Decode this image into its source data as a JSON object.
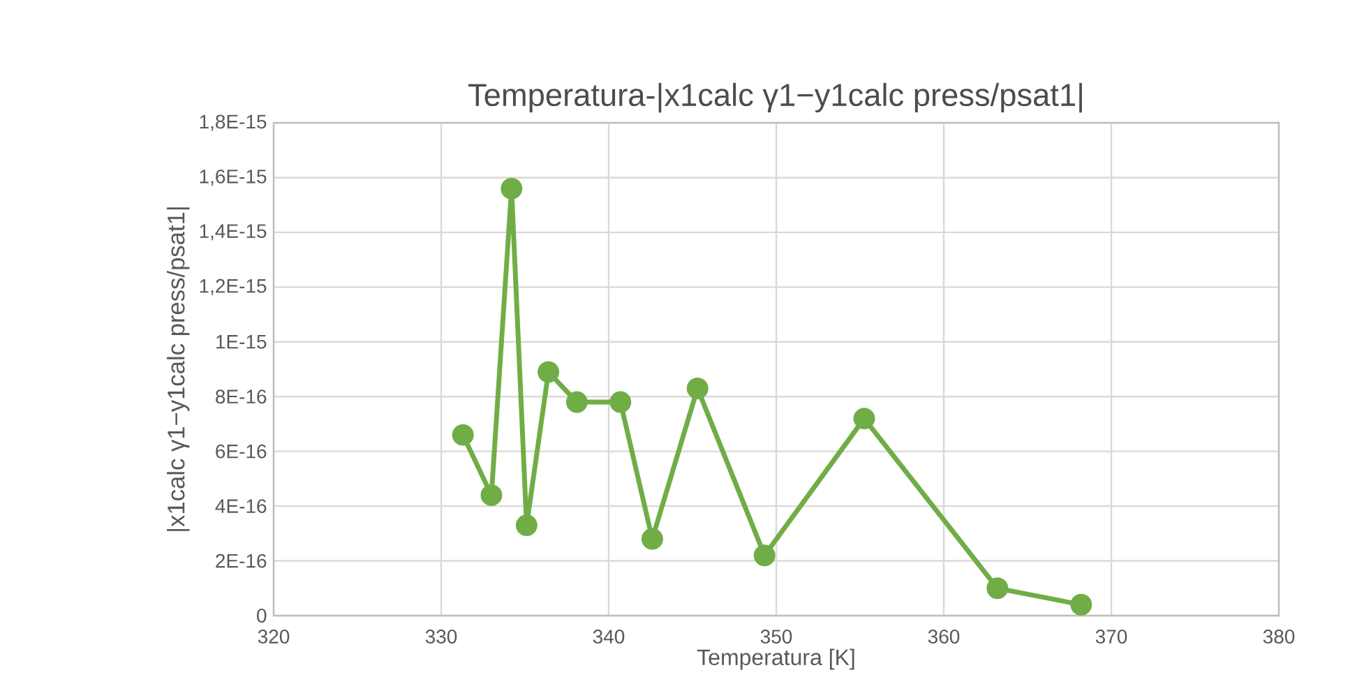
{
  "chart_data": {
    "type": "line",
    "title": "Temperatura-|x1calc γ1−y1calc  press/psat1|",
    "xlabel": "Temperatura [K]",
    "ylabel": "|x1calc γ1−y1calc  press/psat1|",
    "x": [
      331.3,
      333.0,
      334.2,
      335.1,
      336.4,
      338.1,
      340.7,
      342.6,
      345.3,
      349.3,
      355.25,
      363.2,
      368.2
    ],
    "series": [
      {
        "color": "#70ad47",
        "values": [
          6.6e-16,
          4.4e-16,
          1.56e-15,
          3.3e-16,
          8.9e-16,
          7.8e-16,
          7.8e-16,
          2.8e-16,
          8.3e-16,
          2.2e-16,
          7.2e-16,
          1e-16,
          4e-17
        ]
      }
    ],
    "xlim": [
      320,
      380
    ],
    "xticks": [
      320,
      330,
      340,
      350,
      360,
      370,
      380
    ],
    "ylim": [
      0,
      1.8e-15
    ],
    "yticks": [
      0,
      {
        "value": 2e-16,
        "label": "2E-16"
      },
      {
        "value": 4e-16,
        "label": "4E-16"
      },
      {
        "value": 6e-16,
        "label": "6E-16"
      },
      {
        "value": 8e-16,
        "label": "8E-16"
      },
      {
        "value": 1e-15,
        "label": "1E-15"
      },
      {
        "value": 1.2e-15,
        "label": "1,2E-15"
      },
      {
        "value": 1.4e-15,
        "label": "1,4E-15"
      },
      {
        "value": 1.6e-15,
        "label": "1,6E-15"
      },
      {
        "value": 1.8e-15,
        "label": "1,8E-15"
      }
    ],
    "grid": true,
    "marker": "circle",
    "line_style": "solid"
  }
}
